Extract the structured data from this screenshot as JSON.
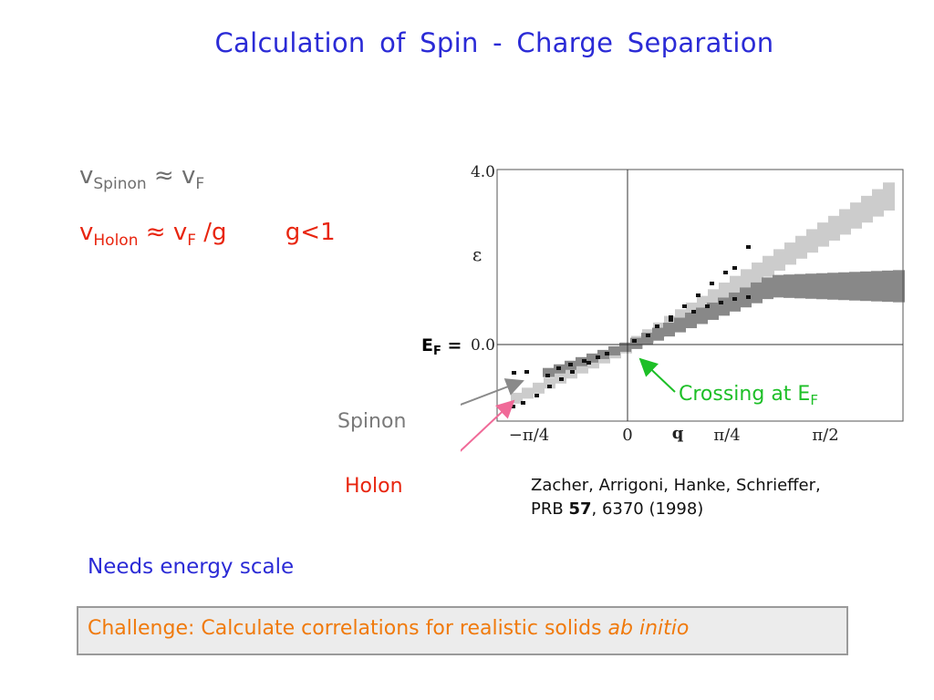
{
  "slide": {
    "title": "Calculation  of  Spin - Charge  Separation",
    "eq1": {
      "v": "v",
      "sub": "Spinon",
      "approx": "≈",
      "rhs_v": "v",
      "rhs_sub": "F"
    },
    "eq2": {
      "v": "v",
      "sub": "Holon",
      "approx": "≈",
      "rhs_v": "v",
      "rhs_sub": "F",
      "div": "/g",
      "cond": "g<1"
    },
    "figure": {
      "ytick_top": "4.0",
      "ytick_zero": "0.0",
      "ylabel": "ε",
      "ef_label": "E",
      "ef_sub": "F",
      "ef_eq": "=",
      "xticks": [
        "−π/4",
        "0",
        "q",
        "π/4",
        "π/2"
      ]
    },
    "labels": {
      "spinon": "Spinon",
      "holon": "Holon",
      "crossing": "Crossing at E",
      "crossing_sub": "F"
    },
    "citation": {
      "line1": "Zacher, Arrigoni, Hanke, Schrieffer,",
      "prb": "PRB ",
      "volume": "57",
      "rest": ", 6370 (1998)"
    },
    "needs": "Needs energy scale",
    "challenge": {
      "text": "Challenge:  Calculate correlations for realistic solids ",
      "italic": "ab initio"
    },
    "colors": {
      "title": "#2b2bd6",
      "holon": "#e8250f",
      "crossing": "#1dbf27",
      "challenge": "#f07a0c",
      "spinon_band": "#888888",
      "holon_band": "#cccccc"
    }
  }
}
